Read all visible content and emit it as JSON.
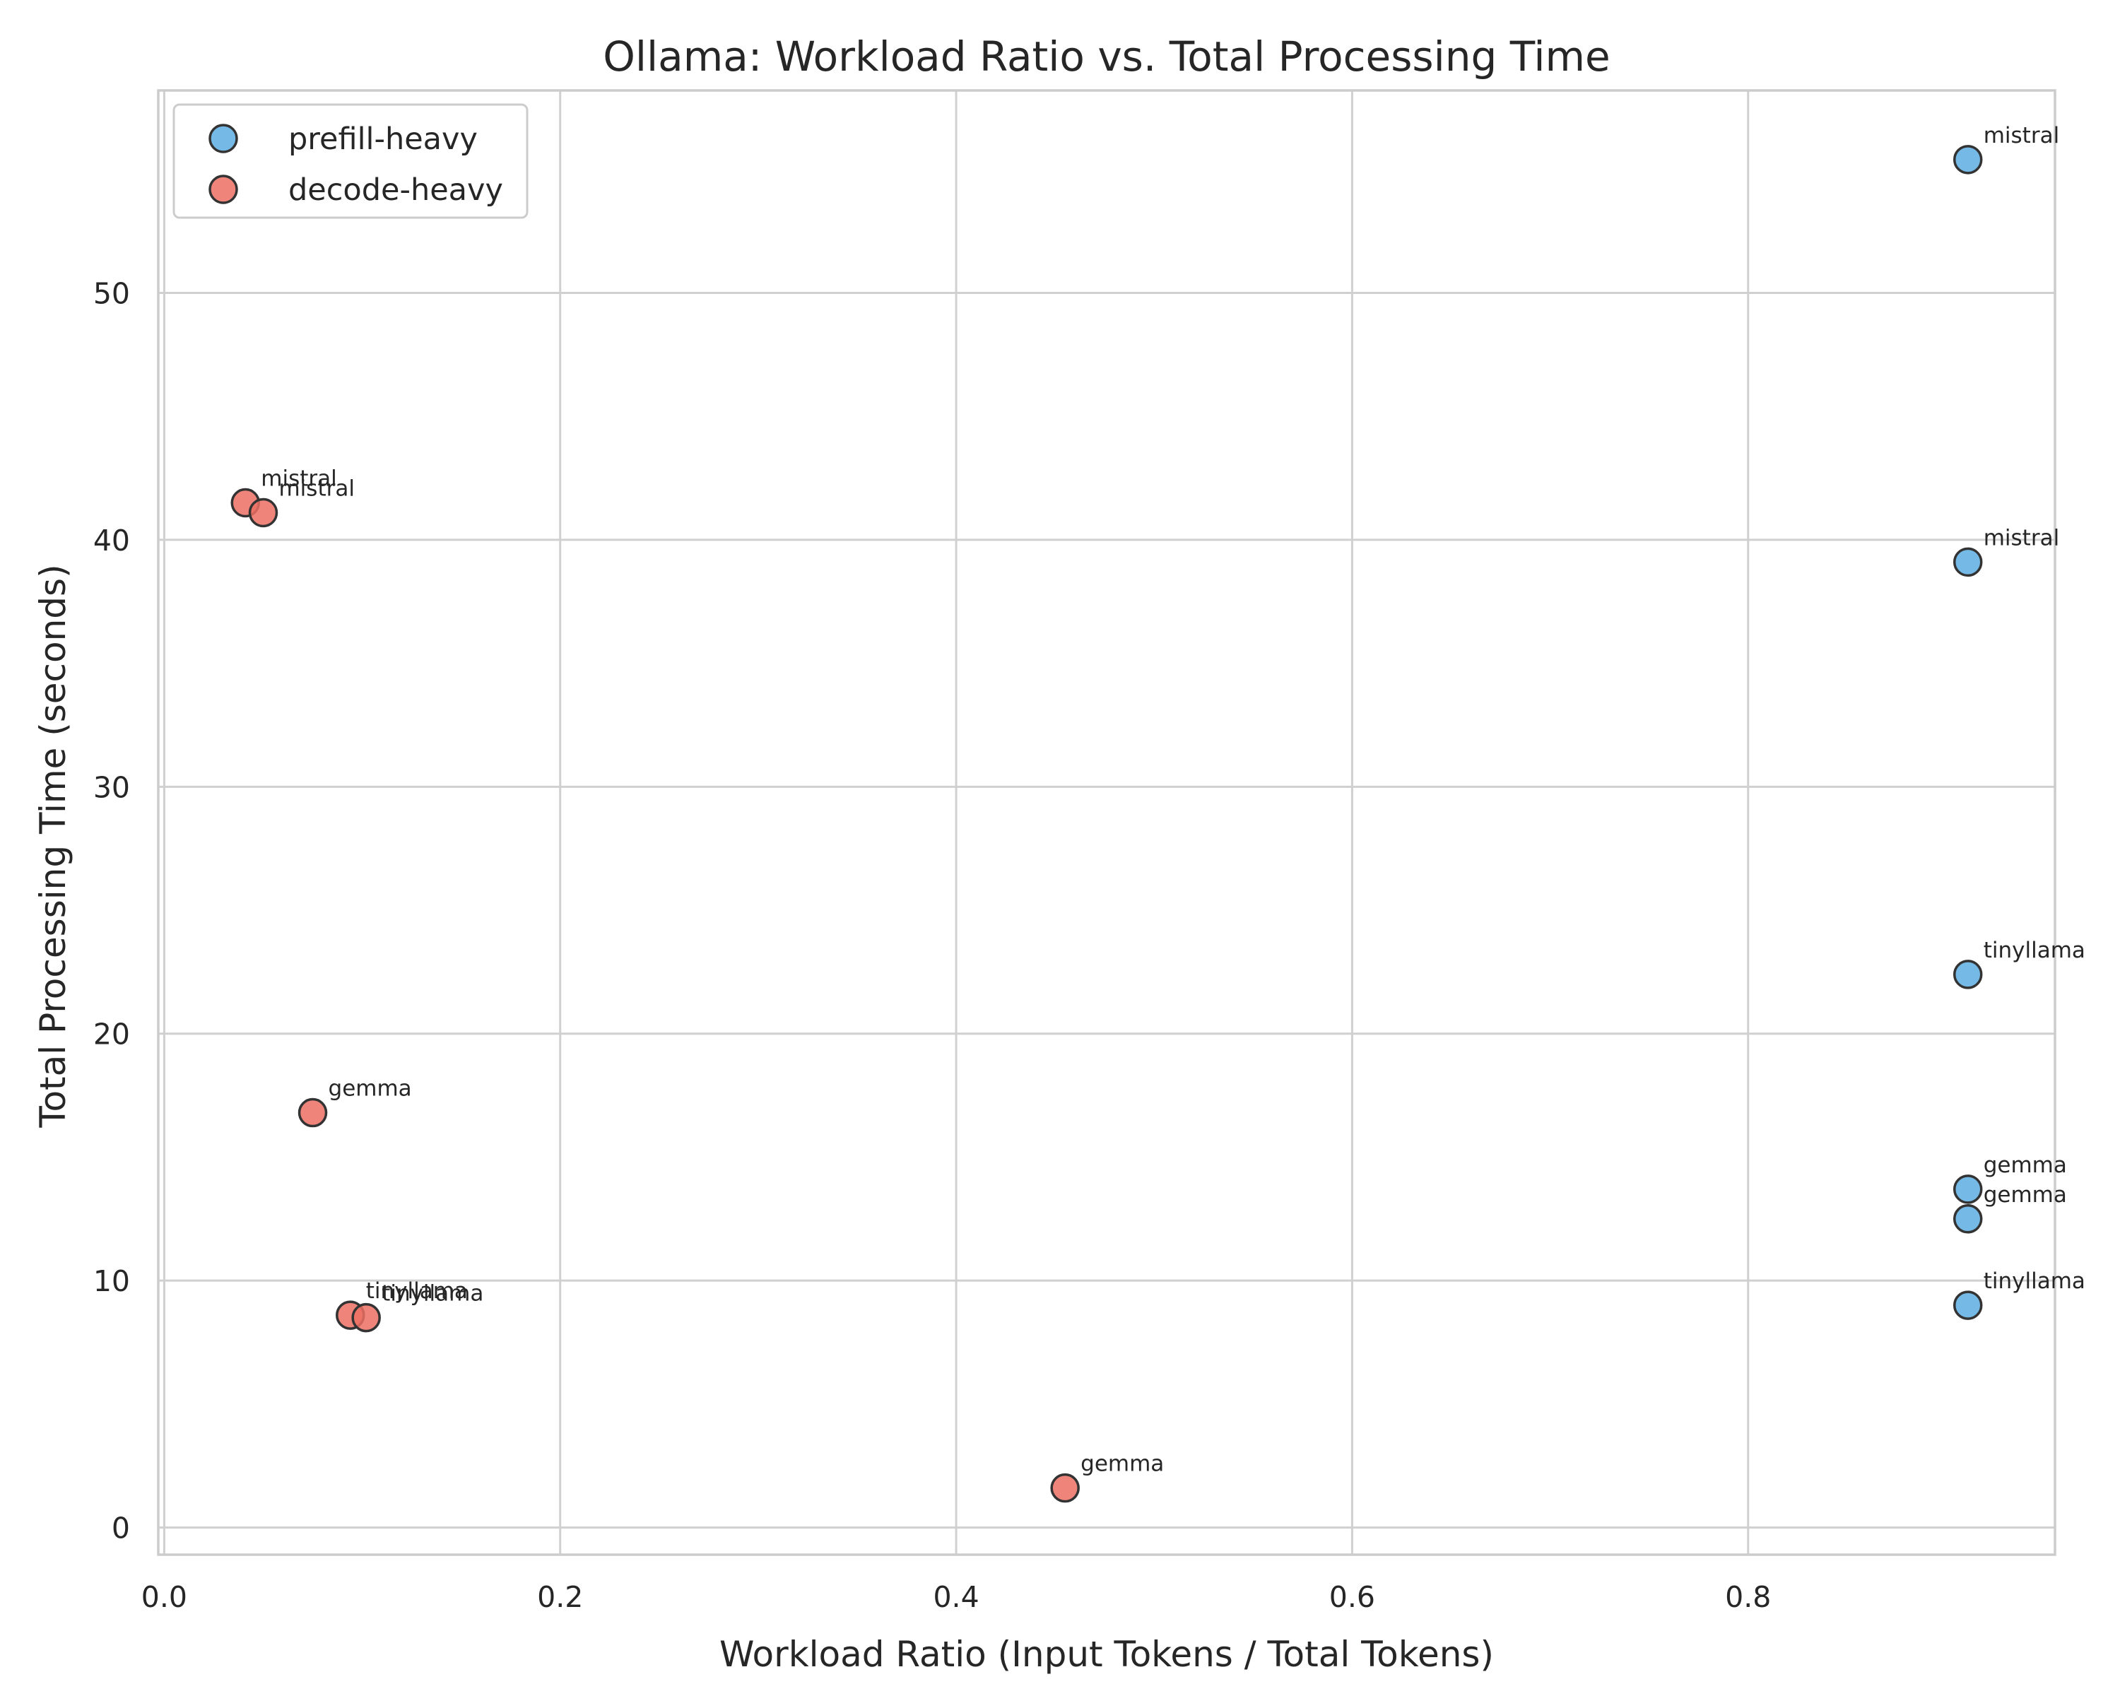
{
  "chart_data": {
    "type": "scatter",
    "title": "Ollama: Workload Ratio vs. Total Processing Time",
    "xlabel": "Workload Ratio (Input Tokens / Total Tokens)",
    "ylabel": "Total Processing Time (seconds)",
    "xlim": [
      -0.003,
      0.955
    ],
    "ylim": [
      -1.1,
      58.2
    ],
    "xticks": [
      0.0,
      0.2,
      0.4,
      0.6,
      0.8
    ],
    "xtick_labels": [
      "0.0",
      "0.2",
      "0.4",
      "0.6",
      "0.8"
    ],
    "yticks": [
      0,
      10,
      20,
      30,
      40,
      50
    ],
    "ytick_labels": [
      "0",
      "10",
      "20",
      "30",
      "40",
      "50"
    ],
    "grid": true,
    "legend_position": "top-left",
    "series": [
      {
        "name": "prefill-heavy",
        "color": "#5dade2",
        "points": [
          {
            "x": 0.911,
            "y": 55.4,
            "label": "mistral"
          },
          {
            "x": 0.911,
            "y": 39.1,
            "label": "mistral"
          },
          {
            "x": 0.911,
            "y": 22.4,
            "label": "tinyllama"
          },
          {
            "x": 0.911,
            "y": 13.7,
            "label": "gemma"
          },
          {
            "x": 0.911,
            "y": 12.5,
            "label": "gemma"
          },
          {
            "x": 0.911,
            "y": 9.0,
            "label": "tinyllama"
          }
        ]
      },
      {
        "name": "decode-heavy",
        "color": "#ec7063",
        "points": [
          {
            "x": 0.041,
            "y": 41.5,
            "label": "mistral"
          },
          {
            "x": 0.05,
            "y": 41.1,
            "label": "mistral"
          },
          {
            "x": 0.075,
            "y": 16.8,
            "label": "gemma"
          },
          {
            "x": 0.094,
            "y": 8.6,
            "label": "tinyllama"
          },
          {
            "x": 0.102,
            "y": 8.5,
            "label": "tinyllama"
          },
          {
            "x": 0.455,
            "y": 1.6,
            "label": "gemma"
          }
        ]
      }
    ]
  }
}
